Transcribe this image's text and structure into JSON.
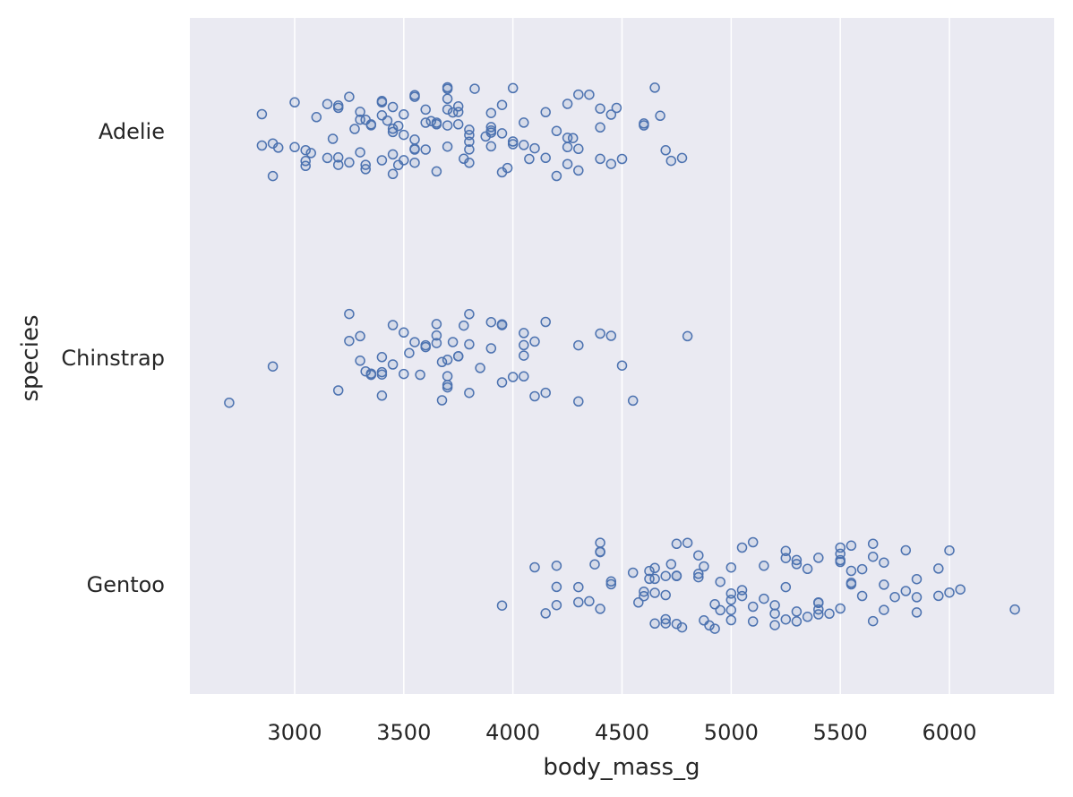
{
  "chart_data": {
    "type": "scatter",
    "subtype": "strip",
    "xlabel": "body_mass_g",
    "ylabel": "species",
    "x_ticks": [
      3000,
      3500,
      4000,
      4500,
      5000,
      5500,
      6000
    ],
    "xlim": [
      2520,
      6480
    ],
    "categories": [
      "Adelie",
      "Chinstrap",
      "Gentoo"
    ],
    "grid": true,
    "background_color": "#eaeaf2",
    "grid_color": "#ffffff",
    "marker_color": "#4c72b0",
    "marker": "hollow circle",
    "series": [
      {
        "category": "Adelie",
        "values": [
          2850,
          2850,
          2900,
          2900,
          2925,
          3000,
          3000,
          3050,
          3050,
          3050,
          3075,
          3100,
          3150,
          3150,
          3175,
          3200,
          3200,
          3200,
          3200,
          3250,
          3250,
          3275,
          3300,
          3300,
          3300,
          3325,
          3325,
          3325,
          3350,
          3350,
          3400,
          3400,
          3400,
          3400,
          3425,
          3450,
          3450,
          3450,
          3450,
          3450,
          3475,
          3475,
          3500,
          3500,
          3500,
          3550,
          3550,
          3550,
          3550,
          3550,
          3550,
          3600,
          3600,
          3600,
          3625,
          3650,
          3650,
          3650,
          3700,
          3700,
          3700,
          3700,
          3700,
          3700,
          3725,
          3750,
          3750,
          3750,
          3775,
          3800,
          3800,
          3800,
          3800,
          3800,
          3825,
          3875,
          3900,
          3900,
          3900,
          3900,
          3900,
          3950,
          3950,
          3950,
          3975,
          4000,
          4000,
          4000,
          4050,
          4050,
          4075,
          4100,
          4150,
          4150,
          4200,
          4200,
          4250,
          4250,
          4250,
          4250,
          4275,
          4300,
          4300,
          4300,
          4350,
          4400,
          4400,
          4400,
          4450,
          4450,
          4475,
          4500,
          4600,
          4600,
          4650,
          4675,
          4700,
          4725,
          4775
        ]
      },
      {
        "category": "Chinstrap",
        "values": [
          2700,
          2900,
          3200,
          3250,
          3250,
          3300,
          3300,
          3325,
          3350,
          3350,
          3400,
          3400,
          3400,
          3400,
          3450,
          3450,
          3500,
          3500,
          3525,
          3550,
          3575,
          3600,
          3600,
          3650,
          3650,
          3650,
          3675,
          3675,
          3700,
          3700,
          3700,
          3700,
          3725,
          3750,
          3750,
          3775,
          3800,
          3800,
          3800,
          3850,
          3900,
          3900,
          3950,
          3950,
          3950,
          3950,
          4000,
          4050,
          4050,
          4050,
          4050,
          4100,
          4100,
          4150,
          4150,
          4300,
          4300,
          4400,
          4450,
          4500,
          4550,
          4800
        ]
      },
      {
        "category": "Gentoo",
        "values": [
          3950,
          4100,
          4150,
          4200,
          4200,
          4200,
          4300,
          4300,
          4350,
          4375,
          4400,
          4400,
          4400,
          4400,
          4450,
          4450,
          4550,
          4575,
          4600,
          4600,
          4625,
          4625,
          4650,
          4650,
          4650,
          4650,
          4700,
          4700,
          4700,
          4700,
          4725,
          4750,
          4750,
          4750,
          4750,
          4775,
          4800,
          4850,
          4850,
          4850,
          4875,
          4875,
          4900,
          4925,
          4925,
          4950,
          4950,
          5000,
          5000,
          5000,
          5000,
          5000,
          5050,
          5050,
          5050,
          5100,
          5100,
          5100,
          5150,
          5150,
          5200,
          5200,
          5200,
          5250,
          5250,
          5250,
          5250,
          5300,
          5300,
          5300,
          5300,
          5350,
          5350,
          5400,
          5400,
          5400,
          5400,
          5400,
          5450,
          5500,
          5500,
          5500,
          5500,
          5500,
          5550,
          5550,
          5550,
          5550,
          5600,
          5600,
          5650,
          5650,
          5650,
          5700,
          5700,
          5700,
          5750,
          5800,
          5800,
          5850,
          5850,
          5850,
          5950,
          5950,
          6000,
          6000,
          6050,
          6300
        ]
      }
    ]
  }
}
